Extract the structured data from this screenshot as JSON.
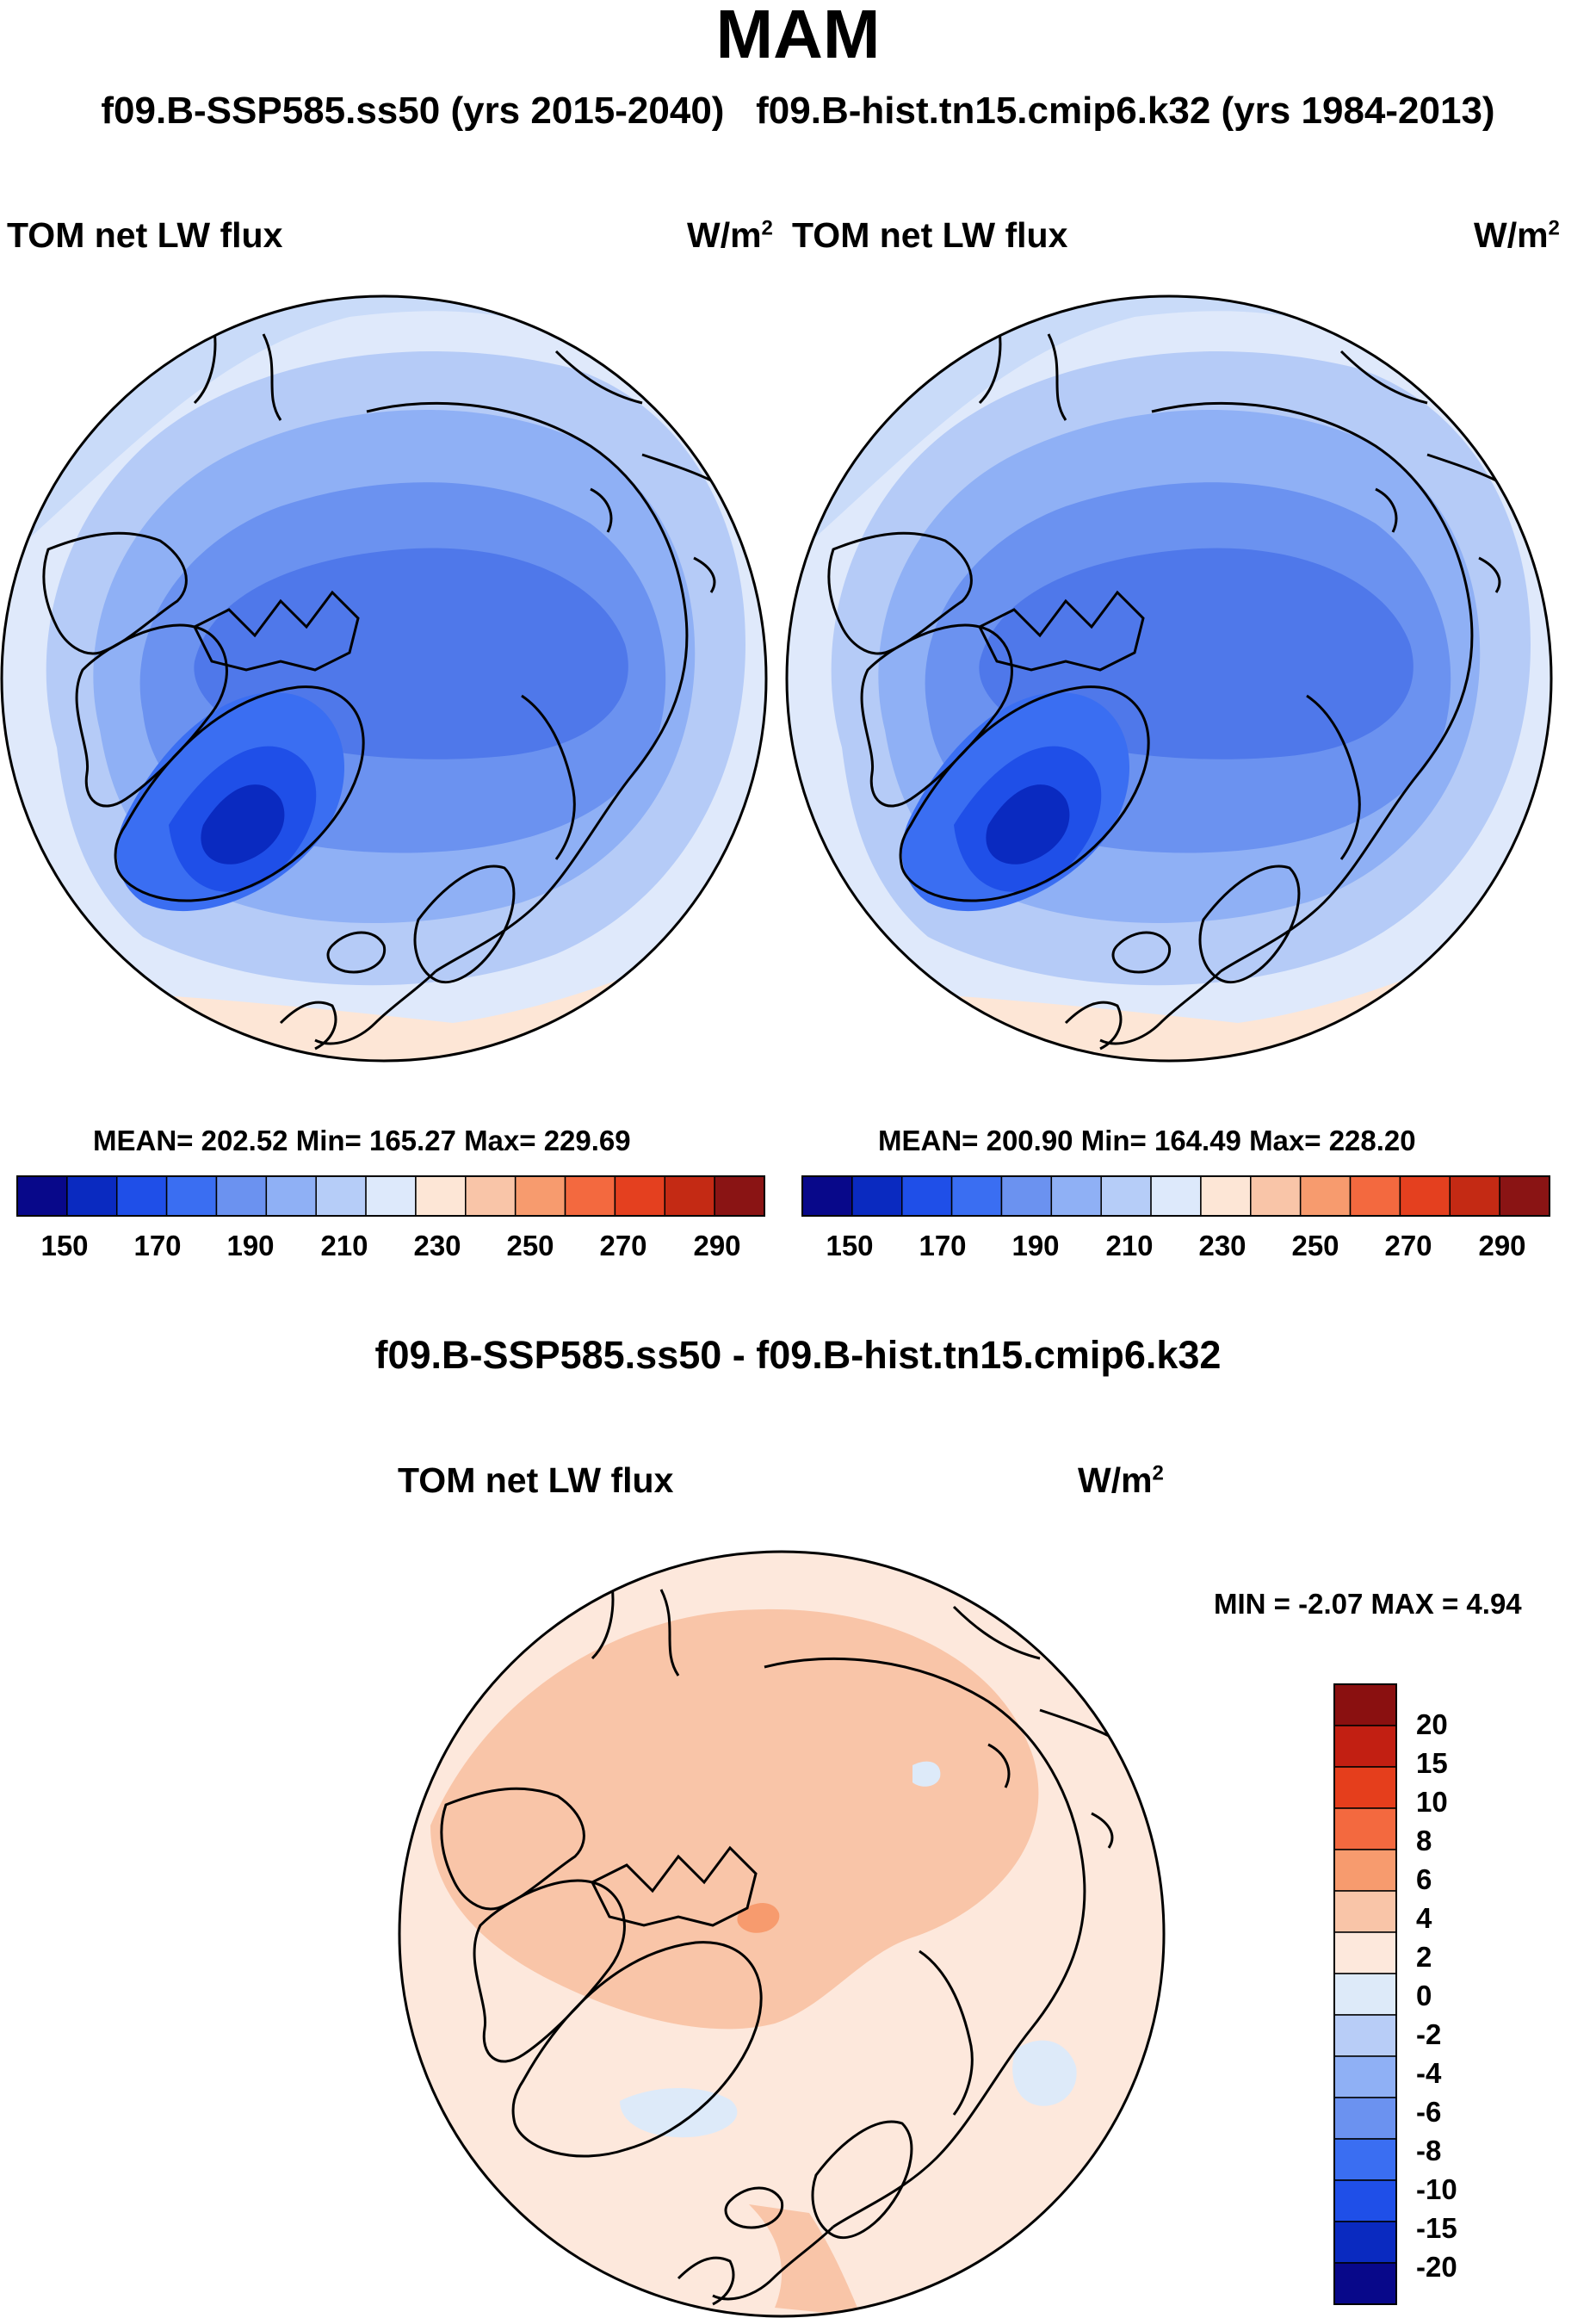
{
  "title": "MAM",
  "subtitle_left": "f09.B-SSP585.ss50 (yrs 2015-2040)",
  "subtitle_right": "f09.B-hist.tn15.cmip6.k32 (yrs 1984-2013)",
  "panels": [
    {
      "variable": "TOM net LW flux",
      "units": "W/m",
      "units_exp": "2",
      "stats": "MEAN= 202.52  Min= 165.27  Max= 229.69",
      "mean": 202.52,
      "min": 165.27,
      "max": 229.69
    },
    {
      "variable": "TOM net LW flux",
      "units": "W/m",
      "units_exp": "2",
      "stats": "MEAN= 200.90  Min= 164.49  Max= 228.20",
      "mean": 200.9,
      "min": 164.49,
      "max": 228.2
    }
  ],
  "abs_colorbar": {
    "tick_labels": [
      "150",
      "170",
      "190",
      "210",
      "230",
      "250",
      "270",
      "290"
    ],
    "colors": [
      "#08088a",
      "#0a2ac0",
      "#1f4fe8",
      "#3a6ef2",
      "#6b92f0",
      "#8fb0f5",
      "#b6cdf8",
      "#dde9fb",
      "#fde6d6",
      "#f9c5a8",
      "#f79b6e",
      "#f3693f",
      "#e4401f",
      "#c42a14",
      "#8a1414"
    ]
  },
  "diff_title": "f09.B-SSP585.ss50 - f09.B-hist.tn15.cmip6.k32",
  "diff_panel": {
    "variable": "TOM net LW flux",
    "units": "W/m",
    "units_exp": "2",
    "minmax": "MIN =  -2.07 MAX =   4.94",
    "min": -2.07,
    "max": 4.94
  },
  "diff_colorbar": {
    "tick_labels": [
      "20",
      "15",
      "10",
      "8",
      "6",
      "4",
      "2",
      "0",
      "-2",
      "-4",
      "-6",
      "-8",
      "-10",
      "-15",
      "-20"
    ],
    "colors": [
      "#8a1010",
      "#c21f12",
      "#e53e1c",
      "#f3693f",
      "#f79b6e",
      "#f9c5a8",
      "#fde8dc",
      "#ddeaf9",
      "#b8cdf7",
      "#8fb0f5",
      "#6b92f0",
      "#3a6ef2",
      "#1f4fe8",
      "#0a2ac0",
      "#08088a"
    ]
  }
}
